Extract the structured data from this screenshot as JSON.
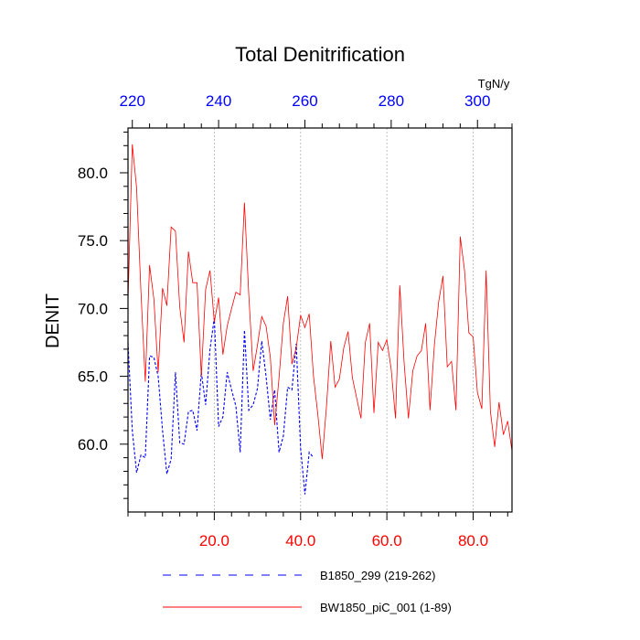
{
  "chart_data": {
    "type": "line",
    "title": "Total Denitrification",
    "units": "TgN/y",
    "ylabel": "DENIT",
    "bottom_axis": {
      "xlim": [
        0,
        89
      ],
      "ticks": [
        20,
        40,
        60,
        80
      ],
      "tick_labels": [
        "20.0",
        "40.0",
        "60.0",
        "80.0"
      ],
      "color": "#ff0000"
    },
    "top_axis": {
      "xlim": [
        219,
        308
      ],
      "ticks": [
        220,
        240,
        260,
        280,
        300
      ],
      "tick_labels": [
        "220",
        "240",
        "260",
        "280",
        "300"
      ],
      "color": "#0000ff"
    },
    "ylim": [
      55.0,
      83.3
    ],
    "yticks": [
      60,
      65,
      70,
      75,
      80
    ],
    "ytick_labels": [
      "60.0",
      "65.0",
      "70.0",
      "75.0",
      "80.0"
    ],
    "grid_x": [
      20,
      40,
      60,
      80
    ],
    "series": [
      {
        "name": "B1850_299 (219-262)",
        "color": "#0000ff",
        "style": "dashed",
        "x": [
          219,
          220,
          221,
          222,
          223,
          224,
          225,
          226,
          227,
          228,
          229,
          230,
          231,
          232,
          233,
          234,
          235,
          236,
          237,
          238,
          239,
          240,
          241,
          242,
          243,
          244,
          245,
          246,
          247,
          248,
          249,
          250,
          251,
          252,
          253,
          254,
          255,
          256,
          257,
          258,
          259,
          260,
          261,
          262
        ],
        "values": [
          67.5,
          61.0,
          57.9,
          59.2,
          59.0,
          66.5,
          66.4,
          65.0,
          61.0,
          57.8,
          58.9,
          65.3,
          60.1,
          60.0,
          62.4,
          62.5,
          61.0,
          65.3,
          62.9,
          67.0,
          69.3,
          61.3,
          62.0,
          65.3,
          64.0,
          62.8,
          59.4,
          68.4,
          62.5,
          62.9,
          64.1,
          67.6,
          65.0,
          61.8,
          64.0,
          59.4,
          60.6,
          64.2,
          64.0,
          67.4,
          59.7,
          56.3,
          59.4,
          59.0
        ]
      },
      {
        "name": "BW1850_piC_001 (1-89)",
        "color": "#ff0000",
        "style": "solid",
        "x": [
          0,
          1,
          2,
          3,
          4,
          5,
          6,
          7,
          8,
          9,
          10,
          11,
          12,
          13,
          14,
          15,
          16,
          17,
          18,
          19,
          20,
          21,
          22,
          23,
          24,
          25,
          26,
          27,
          28,
          29,
          30,
          31,
          32,
          33,
          34,
          35,
          36,
          37,
          38,
          39,
          40,
          41,
          42,
          43,
          44,
          45,
          46,
          47,
          48,
          49,
          50,
          51,
          52,
          53,
          54,
          55,
          56,
          57,
          58,
          59,
          60,
          61,
          62,
          63,
          64,
          65,
          66,
          67,
          68,
          69,
          70,
          71,
          72,
          73,
          74,
          75,
          76,
          77,
          78,
          79,
          80,
          81,
          82,
          83,
          84,
          85,
          86,
          87,
          88,
          89
        ],
        "values": [
          70.5,
          82.1,
          78.9,
          71.2,
          64.6,
          73.2,
          70.7,
          65.3,
          71.5,
          70.2,
          76.0,
          75.7,
          70.1,
          67.5,
          74.2,
          71.9,
          71.9,
          65.0,
          71.4,
          72.8,
          69.0,
          70.8,
          66.6,
          68.7,
          70.0,
          71.2,
          71.0,
          77.8,
          71.0,
          65.4,
          67.3,
          69.4,
          68.7,
          66.4,
          61.4,
          64.9,
          68.9,
          70.9,
          65.9,
          67.1,
          69.5,
          68.6,
          69.6,
          65.0,
          62.2,
          58.9,
          62.8,
          67.6,
          64.2,
          64.8,
          67.1,
          68.3,
          64.9,
          63.4,
          61.9,
          67.5,
          68.9,
          62.3,
          67.5,
          66.9,
          67.7,
          65.5,
          61.9,
          71.7,
          66.0,
          61.9,
          65.4,
          66.5,
          66.9,
          68.9,
          62.5,
          67.3,
          70.5,
          72.4,
          65.7,
          66.1,
          62.5,
          75.3,
          72.8,
          68.2,
          67.9,
          63.8,
          62.6,
          72.8,
          62.4,
          59.8,
          63.1,
          60.7,
          61.7,
          59.5
        ]
      }
    ],
    "legend": {
      "placement": "bottom",
      "entries": [
        "B1850_299 (219-262)",
        "BW1850_piC_001 (1-89)"
      ]
    }
  }
}
